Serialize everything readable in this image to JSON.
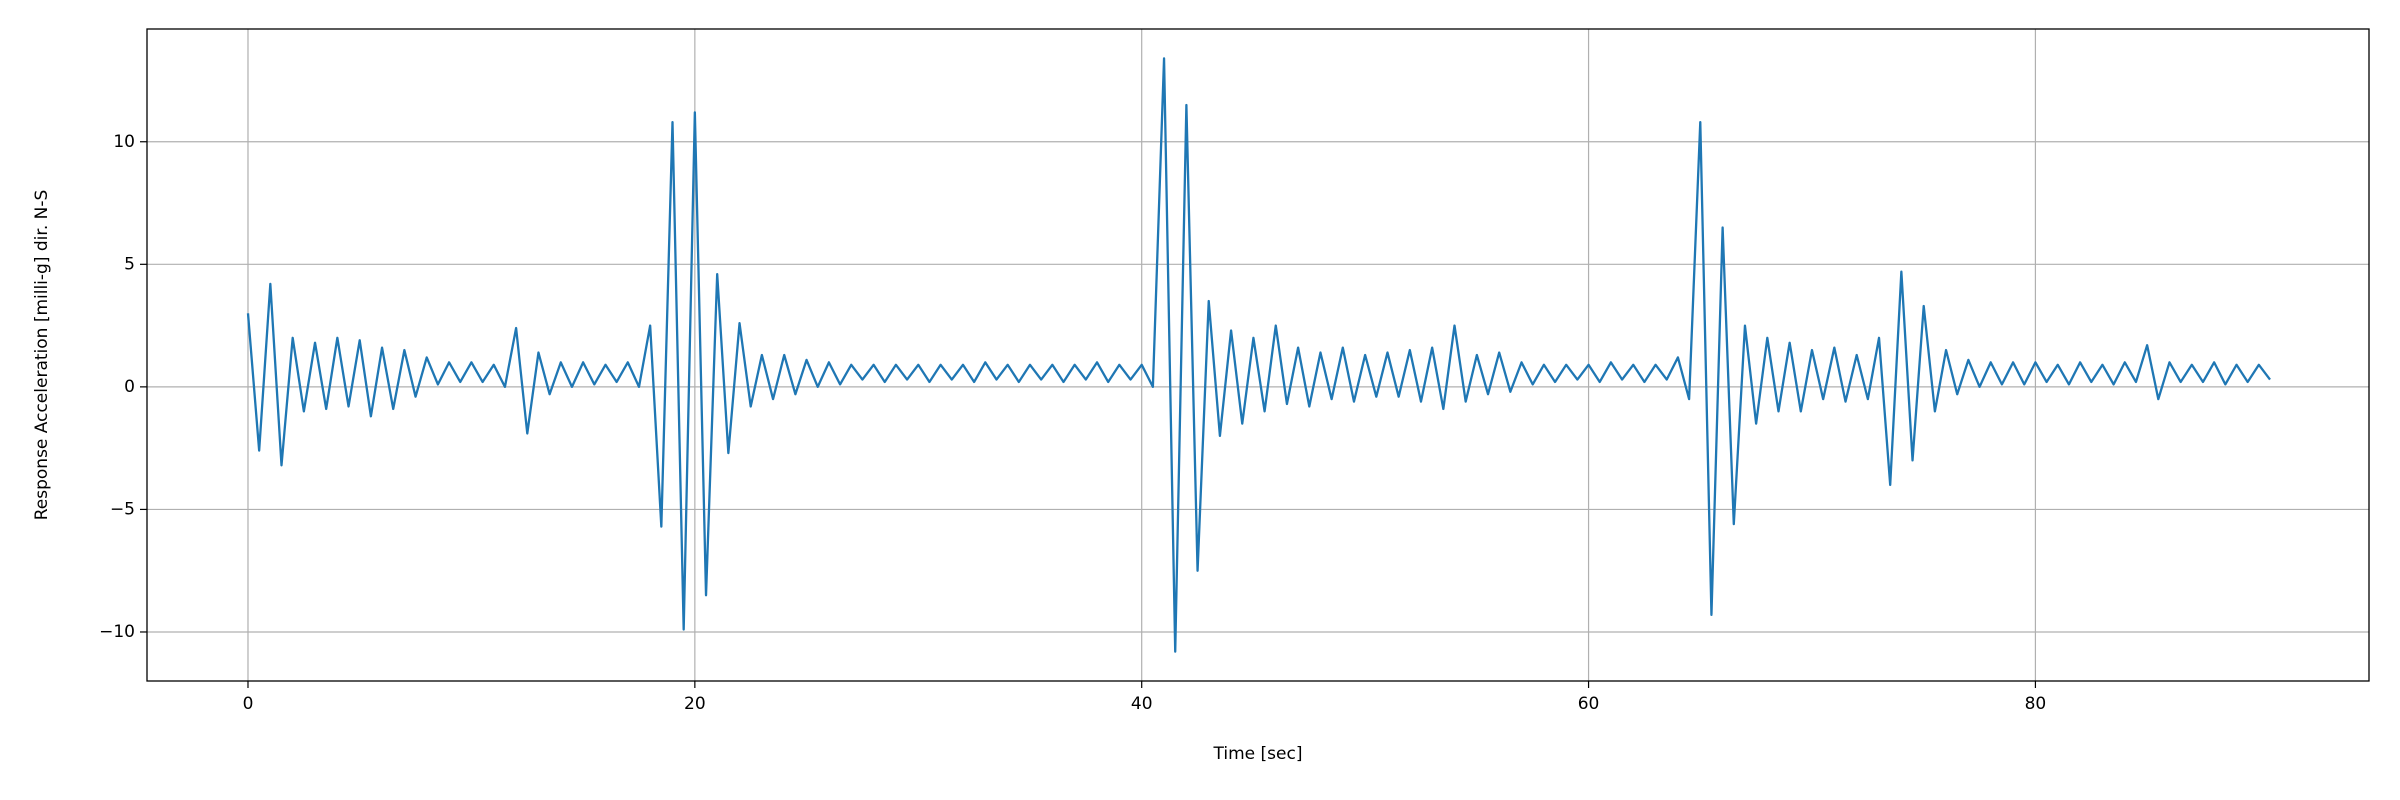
{
  "chart_data": {
    "type": "line",
    "xlabel": "Time [sec]",
    "ylabel": "Response Acceleration [milli-g] dir. N-S",
    "color": "#1f77b4",
    "grid": true,
    "xlim": [
      -4.52,
      94.93
    ],
    "ylim": [
      -12.0,
      14.6
    ],
    "xticks": [
      0,
      20,
      40,
      60,
      80
    ],
    "yticks": [
      {
        "value": -10,
        "label": "−10"
      },
      {
        "value": -5,
        "label": "−5"
      },
      0,
      5,
      10
    ],
    "x": [
      0,
      0.5,
      1,
      1.5,
      2,
      2.5,
      3,
      3.5,
      4,
      4.5,
      5,
      5.5,
      6,
      6.5,
      7,
      7.5,
      8,
      8.5,
      9,
      9.5,
      10,
      10.5,
      11,
      11.5,
      12,
      12.5,
      13,
      13.5,
      14,
      14.5,
      15,
      15.5,
      16,
      16.5,
      17,
      17.5,
      18,
      18.5,
      19,
      19.5,
      20,
      20.5,
      21,
      21.5,
      22,
      22.5,
      23,
      23.5,
      24,
      24.5,
      25,
      25.5,
      26,
      26.5,
      27,
      27.5,
      28,
      28.5,
      29,
      29.5,
      30,
      30.5,
      31,
      31.5,
      32,
      32.5,
      33,
      33.5,
      34,
      34.5,
      35,
      35.5,
      36,
      36.5,
      37,
      37.5,
      38,
      38.5,
      39,
      39.5,
      40,
      40.5,
      41,
      41.5,
      42,
      42.5,
      43,
      43.5,
      44,
      44.5,
      45,
      45.5,
      46,
      46.5,
      47,
      47.5,
      48,
      48.5,
      49,
      49.5,
      50,
      50.5,
      51,
      51.5,
      52,
      52.5,
      53,
      53.5,
      54,
      54.5,
      55,
      55.5,
      56,
      56.5,
      57,
      57.5,
      58,
      58.5,
      59,
      59.5,
      60,
      60.5,
      61,
      61.5,
      62,
      62.5,
      63,
      63.5,
      64,
      64.5,
      65,
      65.5,
      66,
      66.5,
      67,
      67.5,
      68,
      68.5,
      69,
      69.5,
      70,
      70.5,
      71,
      71.5,
      72,
      72.5,
      73,
      73.5,
      74,
      74.5,
      75,
      75.5,
      76,
      76.5,
      77,
      77.5,
      78,
      78.5,
      79,
      79.5,
      80,
      80.5,
      81,
      81.5,
      82,
      82.5,
      83,
      83.5,
      84,
      84.5,
      85,
      85.5,
      86,
      86.5,
      87,
      87.5,
      88,
      88.5,
      89,
      89.5,
      90,
      90.5
    ],
    "values": [
      3.0,
      -2.6,
      4.2,
      -3.2,
      2.0,
      -1.0,
      1.8,
      -0.9,
      2.0,
      -0.8,
      1.9,
      -1.2,
      1.6,
      -0.9,
      1.5,
      -0.4,
      1.2,
      0.1,
      1.0,
      0.2,
      1.0,
      0.2,
      0.9,
      0.0,
      2.4,
      -1.9,
      1.4,
      -0.3,
      1.0,
      0.0,
      1.0,
      0.1,
      0.9,
      0.2,
      1.0,
      0.0,
      2.5,
      -5.7,
      10.8,
      -9.9,
      11.2,
      -8.5,
      4.6,
      -2.7,
      2.6,
      -0.8,
      1.3,
      -0.5,
      1.3,
      -0.3,
      1.1,
      0.0,
      1.0,
      0.1,
      0.9,
      0.3,
      0.9,
      0.2,
      0.9,
      0.3,
      0.9,
      0.2,
      0.9,
      0.3,
      0.9,
      0.2,
      1.0,
      0.3,
      0.9,
      0.2,
      0.9,
      0.3,
      0.9,
      0.2,
      0.9,
      0.3,
      1.0,
      0.2,
      0.9,
      0.3,
      0.9,
      0.0,
      13.4,
      -10.8,
      11.5,
      -7.5,
      3.5,
      -2.0,
      2.3,
      -1.5,
      2.0,
      -1.0,
      2.5,
      -0.7,
      1.6,
      -0.8,
      1.4,
      -0.5,
      1.6,
      -0.6,
      1.3,
      -0.4,
      1.4,
      -0.4,
      1.5,
      -0.6,
      1.6,
      -0.9,
      2.5,
      -0.6,
      1.3,
      -0.3,
      1.4,
      -0.2,
      1.0,
      0.1,
      0.9,
      0.2,
      0.9,
      0.3,
      0.9,
      0.2,
      1.0,
      0.3,
      0.9,
      0.2,
      0.9,
      0.3,
      1.2,
      -0.5,
      10.8,
      -9.3,
      6.5,
      -5.6,
      2.5,
      -1.5,
      2.0,
      -1.0,
      1.8,
      -1.0,
      1.5,
      -0.5,
      1.6,
      -0.6,
      1.3,
      -0.5,
      2.0,
      -4.0,
      4.7,
      -3.0,
      3.3,
      -1.0,
      1.5,
      -0.3,
      1.1,
      0.0,
      1.0,
      0.1,
      1.0,
      0.1,
      1.0,
      0.2,
      0.9,
      0.1,
      1.0,
      0.2,
      0.9,
      0.1,
      1.0,
      0.2,
      1.7,
      -0.5,
      1.0,
      0.2,
      0.9,
      0.2,
      1.0,
      0.1,
      0.9,
      0.2,
      0.9,
      0.3
    ]
  }
}
